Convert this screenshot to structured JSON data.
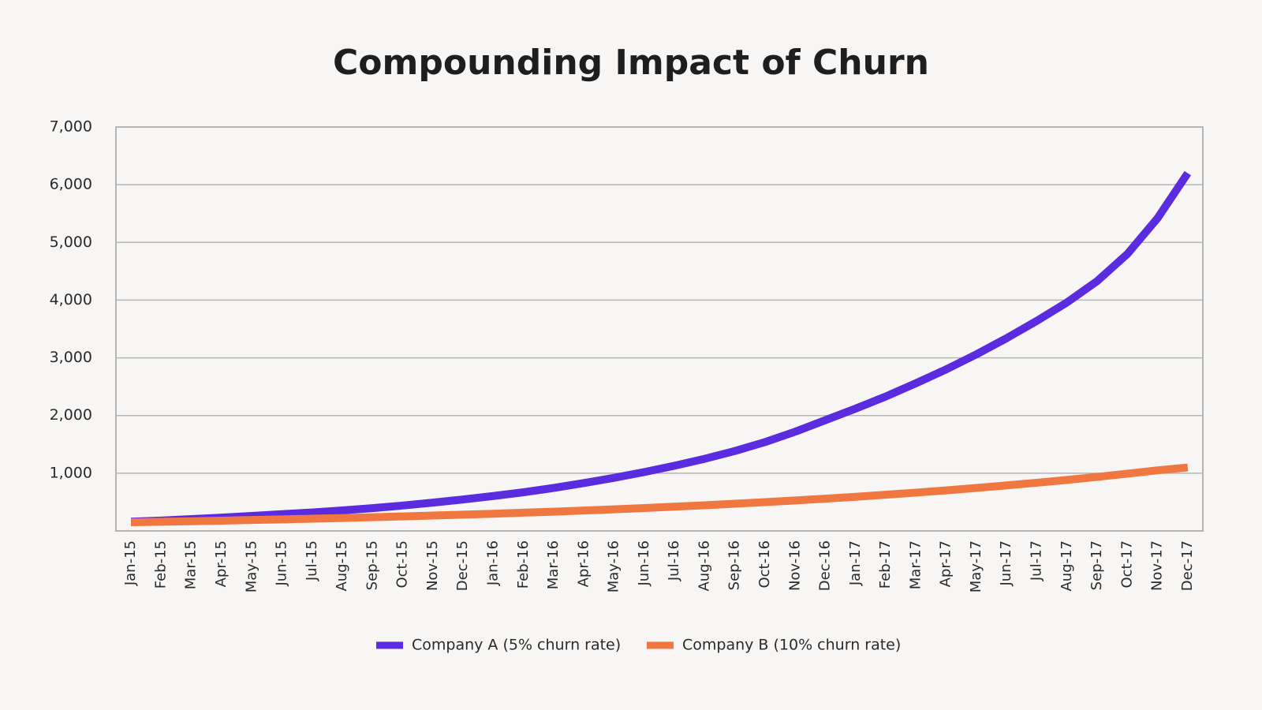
{
  "chart_data": {
    "type": "line",
    "title": "Compounding Impact of Churn",
    "categories": [
      "Jan-15",
      "Feb-15",
      "Mar-15",
      "Apr-15",
      "May-15",
      "Jun-15",
      "Jul-15",
      "Aug-15",
      "Sep-15",
      "Oct-15",
      "Nov-15",
      "Dec-15",
      "Jan-16",
      "Feb-16",
      "Mar-16",
      "Apr-16",
      "May-16",
      "Jun-16",
      "Jul-16",
      "Aug-16",
      "Sep-16",
      "Oct-16",
      "Nov-16",
      "Dec-16",
      "Jan-17",
      "Feb-17",
      "Mar-17",
      "Apr-17",
      "May-17",
      "Jun-17",
      "Jul-17",
      "Aug-17",
      "Sep-17",
      "Oct-17",
      "Nov-17",
      "Dec-17"
    ],
    "series": [
      {
        "name": "Company A (5% churn rate)",
        "color": "#5b2be0",
        "values": [
          160,
          180,
          205,
          230,
          260,
          290,
          320,
          355,
          395,
          440,
          490,
          545,
          605,
          670,
          745,
          830,
          920,
          1020,
          1130,
          1250,
          1385,
          1540,
          1720,
          1920,
          2120,
          2330,
          2560,
          2800,
          3060,
          3340,
          3640,
          3960,
          4330,
          4800,
          5420,
          6200
        ]
      },
      {
        "name": "Company B (10% churn rate)",
        "color": "#f07840",
        "values": [
          150,
          159,
          168,
          178,
          189,
          200,
          212,
          224,
          237,
          251,
          266,
          282,
          298,
          316,
          334,
          354,
          375,
          397,
          420,
          445,
          471,
          499,
          528,
          559,
          592,
          627,
          664,
          703,
          745,
          789,
          835,
          884,
          936,
          992,
          1050,
          1100
        ]
      }
    ],
    "ylim": [
      0,
      7000
    ],
    "yticks": [
      {
        "value": 1000,
        "label": "1,000"
      },
      {
        "value": 2000,
        "label": "2,000"
      },
      {
        "value": 3000,
        "label": "3,000"
      },
      {
        "value": 4000,
        "label": "4,000"
      },
      {
        "value": 5000,
        "label": "5,000"
      },
      {
        "value": 6000,
        "label": "6,000"
      },
      {
        "value": 7000,
        "label": "7,000"
      }
    ],
    "grid": true,
    "legend": "bottom"
  }
}
